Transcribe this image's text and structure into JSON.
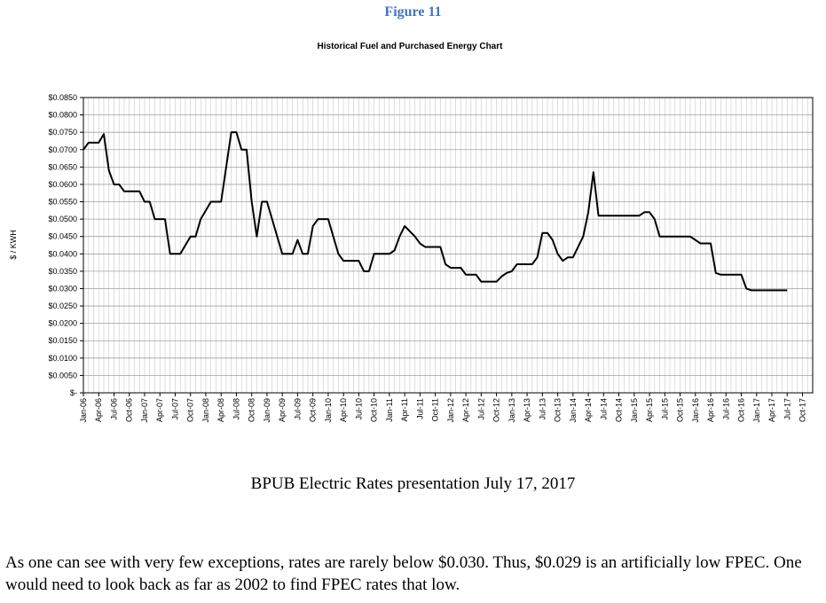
{
  "figure_label": "Figure 11",
  "caption": "BPUB Electric Rates presentation July 17, 2017",
  "paragraph": "As one can see with very few exceptions, rates are rarely below $0.030.  Thus, $0.029 is an artificially low FPEC.  One would need to look back as far as 2002 to find FPEC rates that low.",
  "chart_data": {
    "type": "line",
    "title": "Historical Fuel and  Purchased Energy Chart",
    "ylabel": "$ / KWH",
    "xlabel": "",
    "ylim": [
      0,
      0.085
    ],
    "grid": true,
    "y_ticks": [
      "$0.0850",
      "$0.0800",
      "$0.0750",
      "$0.0700",
      "$0.0650",
      "$0.0600",
      "$0.0550",
      "$0.0500",
      "$0.0450",
      "$0.0400",
      "$0.0350",
      "$0.0300",
      "$0.0250",
      "$0.0200",
      "$0.0150",
      "$0.0100",
      "$0.0050",
      "$-"
    ],
    "x_tick_labels": [
      "Jan-06",
      "Apr-06",
      "Jul-06",
      "Oct-06",
      "Jan-07",
      "Apr-07",
      "Jul-07",
      "Oct-07",
      "Jan-08",
      "Apr-08",
      "Jul-08",
      "Oct-08",
      "Jan-09",
      "Apr-09",
      "Jul-09",
      "Oct-09",
      "Jan-10",
      "Apr-10",
      "Jul-10",
      "Oct-10",
      "Jan-11",
      "Apr-11",
      "Jul-11",
      "Oct-11",
      "Jan-12",
      "Apr-12",
      "Jul-12",
      "Oct-12",
      "Jan-13",
      "Apr-13",
      "Jul-13",
      "Oct-13",
      "Jan-14",
      "Apr-14",
      "Jul-14",
      "Oct-14",
      "Jan-15",
      "Apr-15",
      "Jul-15",
      "Oct-15",
      "Jan-16",
      "Apr-16",
      "Jul-16",
      "Oct-16",
      "Jan-17",
      "Apr-17",
      "Jul-17",
      "Oct-17"
    ],
    "series": [
      {
        "name": "Fuel and Purchased Energy",
        "start_month": "Jan-06",
        "values": [
          0.07,
          0.072,
          0.072,
          0.072,
          0.0745,
          0.064,
          0.06,
          0.06,
          0.058,
          0.058,
          0.058,
          0.058,
          0.055,
          0.055,
          0.05,
          0.05,
          0.05,
          0.04,
          0.04,
          0.04,
          0.0425,
          0.045,
          0.045,
          0.05,
          0.0525,
          0.055,
          0.055,
          0.055,
          0.065,
          0.075,
          0.075,
          0.07,
          0.07,
          0.055,
          0.045,
          0.055,
          0.055,
          0.05,
          0.045,
          0.04,
          0.04,
          0.04,
          0.044,
          0.04,
          0.04,
          0.048,
          0.05,
          0.05,
          0.05,
          0.045,
          0.04,
          0.038,
          0.038,
          0.038,
          0.038,
          0.035,
          0.035,
          0.04,
          0.04,
          0.04,
          0.04,
          0.041,
          0.045,
          0.048,
          0.0465,
          0.045,
          0.043,
          0.042,
          0.042,
          0.042,
          0.042,
          0.037,
          0.036,
          0.036,
          0.036,
          0.034,
          0.034,
          0.034,
          0.032,
          0.032,
          0.032,
          0.032,
          0.0335,
          0.0345,
          0.035,
          0.037,
          0.037,
          0.037,
          0.037,
          0.039,
          0.046,
          0.046,
          0.044,
          0.04,
          0.038,
          0.039,
          0.039,
          0.042,
          0.045,
          0.052,
          0.0635,
          0.051,
          0.051,
          0.051,
          0.051,
          0.051,
          0.051,
          0.051,
          0.051,
          0.051,
          0.052,
          0.052,
          0.05,
          0.045,
          0.045,
          0.045,
          0.045,
          0.045,
          0.045,
          0.045,
          0.044,
          0.043,
          0.043,
          0.043,
          0.0345,
          0.034,
          0.034,
          0.034,
          0.034,
          0.034,
          0.03,
          0.0295,
          0.0295,
          0.0295,
          0.0295,
          0.0295,
          0.0295,
          0.0295,
          0.0295
        ]
      }
    ],
    "line_color": "#000000"
  }
}
